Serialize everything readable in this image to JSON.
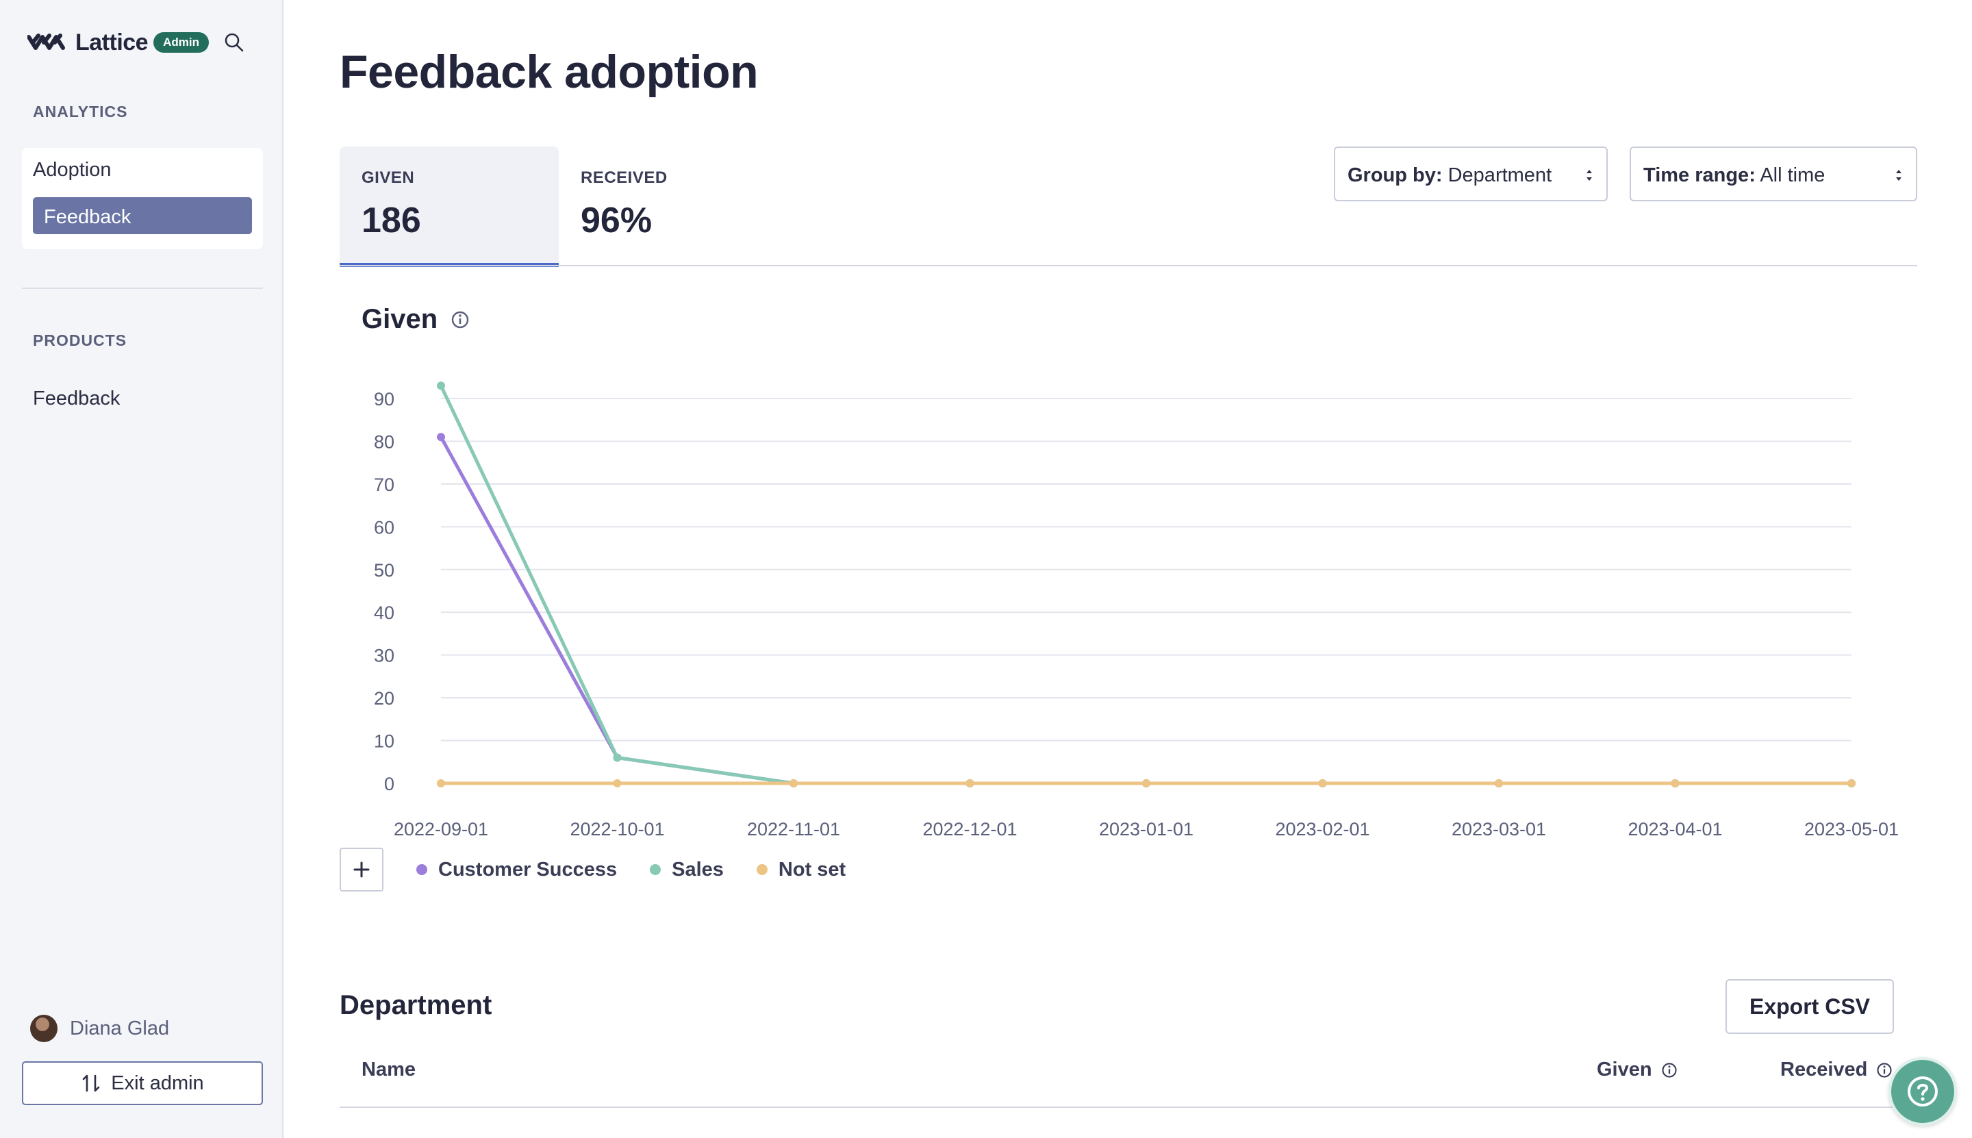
{
  "brand": {
    "name": "Lattice",
    "badge": "Admin",
    "logo_icon": "lattice-logo-icon",
    "search_icon": "search-icon"
  },
  "sidebar": {
    "analytics_label": "ANALYTICS",
    "analytics_items": [
      {
        "label": "Adoption",
        "active": false
      },
      {
        "label": "Feedback",
        "active": true
      }
    ],
    "products_label": "PRODUCTS",
    "products_items": [
      {
        "label": "Feedback"
      }
    ],
    "user": {
      "name": "Diana Glad"
    },
    "exit_label": "Exit admin"
  },
  "page": {
    "title": "Feedback adoption"
  },
  "tabs": [
    {
      "label": "GIVEN",
      "value": "186",
      "active": true
    },
    {
      "label": "RECEIVED",
      "value": "96%",
      "active": false
    }
  ],
  "filters": {
    "group_by_label": "Group by:",
    "group_by_value": "Department",
    "time_range_label": "Time range:",
    "time_range_value": "All time"
  },
  "chart_section": {
    "title": "Given"
  },
  "chart_data": {
    "type": "line",
    "title": "Given",
    "x": [
      "2022-09-01",
      "2022-10-01",
      "2022-11-01",
      "2022-12-01",
      "2023-01-01",
      "2023-02-01",
      "2023-03-01",
      "2023-04-01",
      "2023-05-01"
    ],
    "y_ticks": [
      0,
      10,
      20,
      30,
      40,
      50,
      60,
      70,
      80,
      90
    ],
    "ylim": [
      0,
      95
    ],
    "grid": true,
    "series": [
      {
        "name": "Customer Success",
        "color": "#9b7ddb",
        "values": [
          81,
          6,
          0,
          0,
          0,
          0,
          0,
          0,
          0
        ]
      },
      {
        "name": "Sales",
        "color": "#88c9b6",
        "values": [
          93,
          6,
          0,
          0,
          0,
          0,
          0,
          0,
          0
        ]
      },
      {
        "name": "Not set",
        "color": "#ecc584",
        "values": [
          0,
          0,
          0,
          0,
          0,
          0,
          0,
          0,
          0
        ]
      }
    ]
  },
  "department": {
    "title": "Department",
    "export_label": "Export CSV",
    "columns": {
      "name": "Name",
      "given": "Given",
      "received": "Received"
    }
  },
  "help": {
    "icon": "help-icon"
  }
}
